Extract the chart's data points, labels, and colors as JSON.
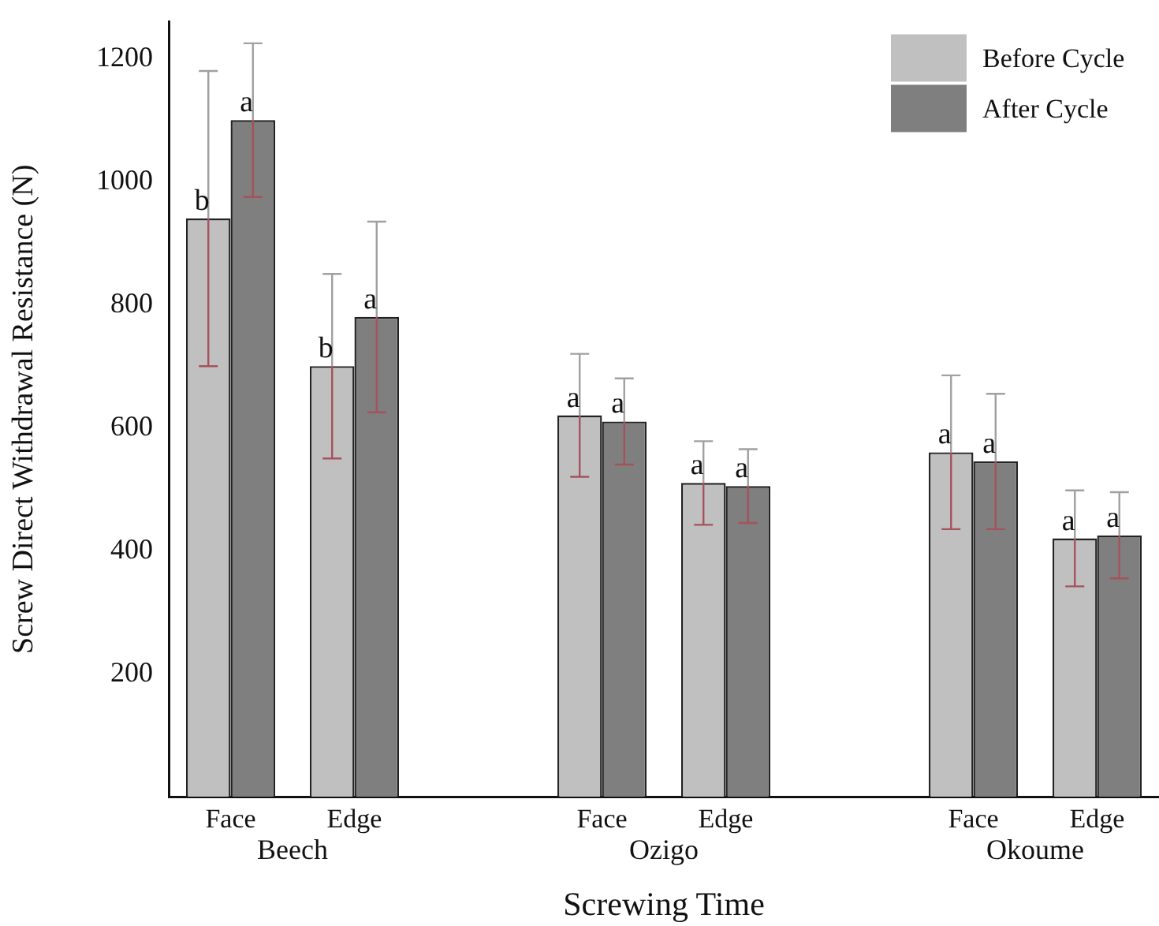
{
  "chart_data": {
    "type": "bar",
    "xlabel": "Screwing Time",
    "ylabel": "Screw Direct Withdrawal Resistance (N)",
    "categories": [
      "Face",
      "Edge",
      null,
      "Face",
      "Edge",
      null,
      "Face",
      "Edge"
    ],
    "annotations": [
      "Beech",
      "Ozigo",
      "Okoume"
    ],
    "series": [
      {
        "name": "Before Cycle",
        "color": "#c0c0c0",
        "values": [
          940,
          700,
          null,
          620,
          510,
          null,
          560,
          420
        ],
        "errors": [
          240,
          150,
          null,
          100,
          68,
          null,
          125,
          78
        ],
        "value_labels": [
          "b",
          "b",
          null,
          "a",
          "a",
          null,
          "a",
          "a"
        ]
      },
      {
        "name": "After Cycle",
        "color": "#7f7f7f",
        "values": [
          1100,
          780,
          null,
          610,
          505,
          null,
          545,
          425
        ],
        "errors": [
          125,
          155,
          null,
          70,
          60,
          null,
          110,
          70
        ],
        "value_labels": [
          "a",
          "a",
          null,
          "a",
          "a",
          null,
          "a",
          "a"
        ]
      }
    ],
    "ylim": [
      0,
      1260
    ],
    "yticks": [
      200,
      400,
      600,
      800,
      1000,
      1200
    ],
    "grid": false,
    "legend": "top right"
  }
}
